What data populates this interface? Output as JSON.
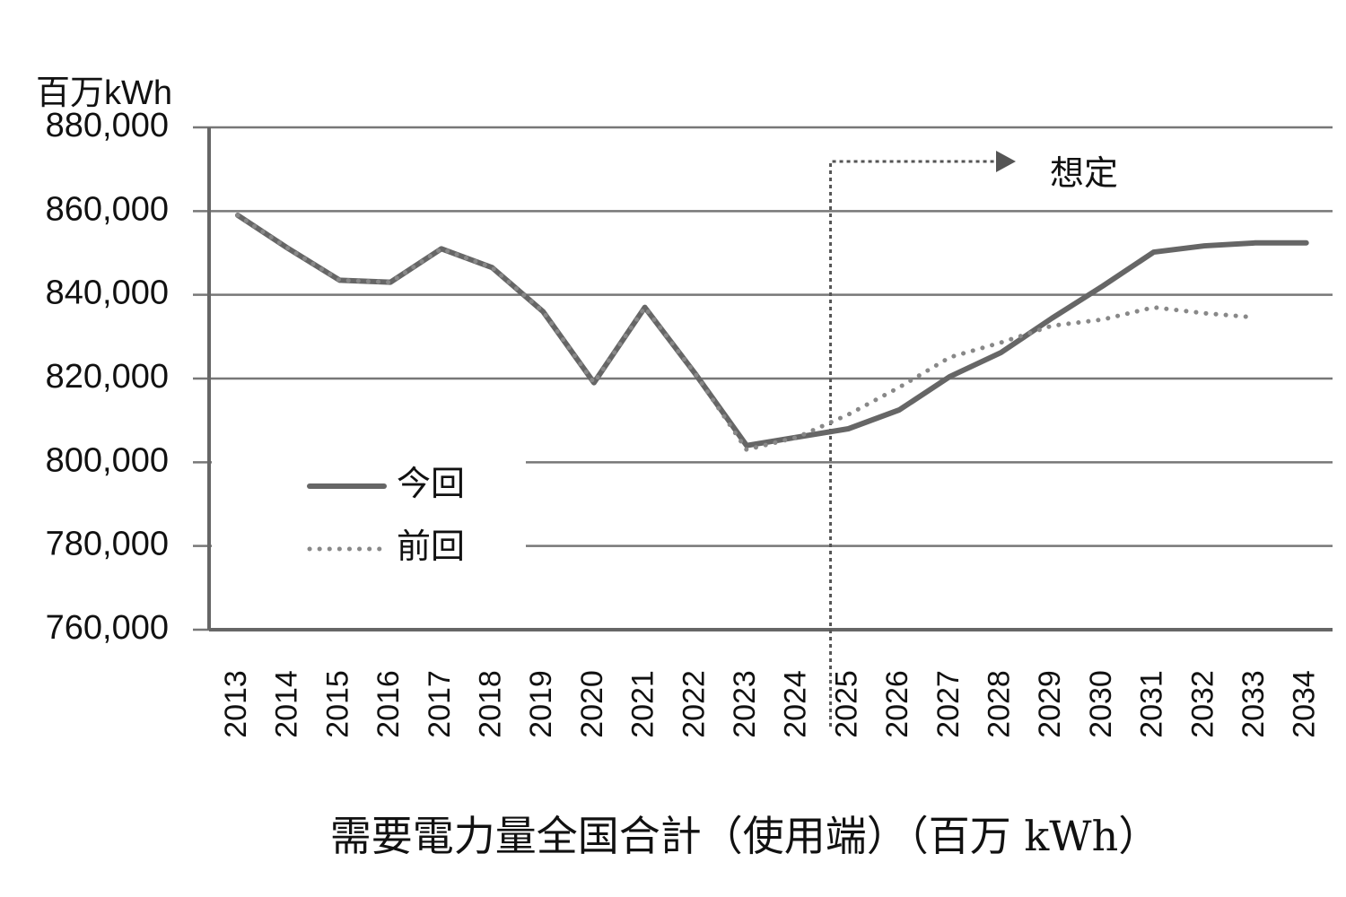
{
  "chart_data": {
    "type": "line",
    "title": "需要電力量全国合計（使用端）（百万 kWh）",
    "y_unit": "百万kWh",
    "annotation": "想定",
    "categories": [
      "2013",
      "2014",
      "2015",
      "2016",
      "2017",
      "2018",
      "2019",
      "2020",
      "2021",
      "2022",
      "2023",
      "2024",
      "2025",
      "2026",
      "2027",
      "2028",
      "2029",
      "2030",
      "2031",
      "2032",
      "2033",
      "2034"
    ],
    "series": [
      {
        "name": "今回",
        "color": "#666666",
        "style": "solid",
        "values": [
          859000,
          851000,
          843500,
          843000,
          851000,
          846500,
          836000,
          819000,
          837000,
          821000,
          804000,
          806000,
          808000,
          812500,
          820500,
          826200,
          834400,
          842100,
          850200,
          851700,
          852400,
          852400
        ]
      },
      {
        "name": "前回",
        "color": "#888888",
        "style": "dotted",
        "values": [
          859000,
          851000,
          843500,
          843000,
          851000,
          846500,
          836000,
          819000,
          837000,
          821000,
          803000,
          806000,
          811400,
          817900,
          825100,
          828600,
          832600,
          834100,
          837000,
          835600,
          834600,
          null
        ]
      }
    ],
    "ylim": [
      760000,
      880000
    ],
    "yticks": [
      {
        "value": 760000,
        "label": "760,000"
      },
      {
        "value": 780000,
        "label": "780,000"
      },
      {
        "value": 800000,
        "label": "800,000"
      },
      {
        "value": 820000,
        "label": "820,000"
      },
      {
        "value": 840000,
        "label": "840,000"
      },
      {
        "value": 860000,
        "label": "860,000"
      },
      {
        "value": 880000,
        "label": "880,000"
      }
    ],
    "grid": true
  }
}
